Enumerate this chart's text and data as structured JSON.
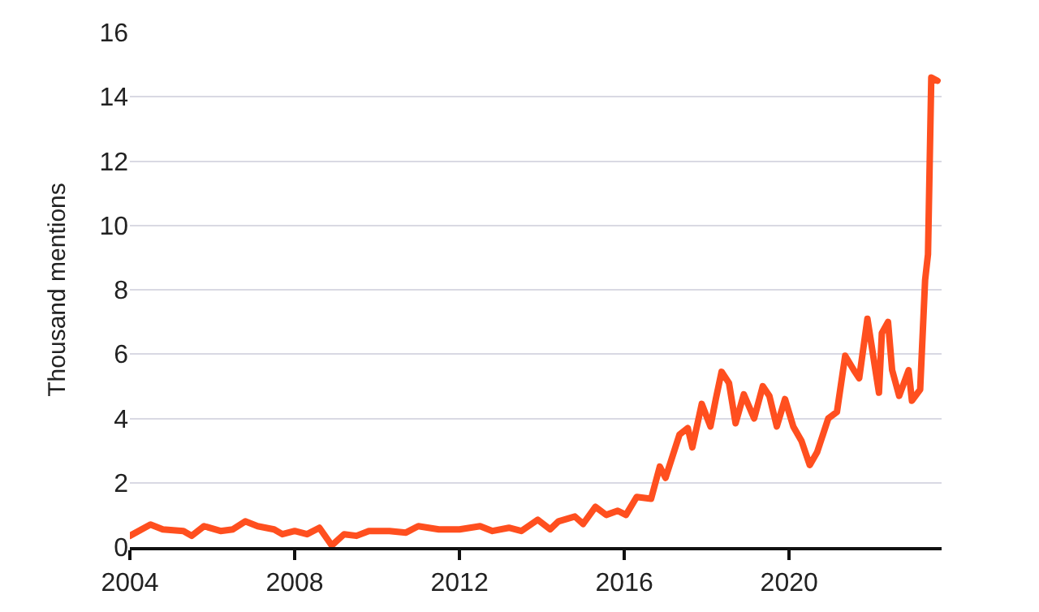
{
  "chart_data": {
    "type": "line",
    "ylabel": "Thousand mentions",
    "x": [
      2004.0,
      2004.5,
      2004.8,
      2005.3,
      2005.5,
      2005.8,
      2006.2,
      2006.5,
      2006.8,
      2007.1,
      2007.5,
      2007.7,
      2008.0,
      2008.3,
      2008.6,
      2008.9,
      2009.2,
      2009.5,
      2009.8,
      2010.3,
      2010.7,
      2011.0,
      2011.5,
      2012.0,
      2012.5,
      2012.8,
      2013.2,
      2013.5,
      2013.9,
      2014.2,
      2014.4,
      2014.8,
      2015.0,
      2015.3,
      2015.56,
      2015.84,
      2016.04,
      2016.3,
      2016.65,
      2016.86,
      2017.0,
      2017.34,
      2017.54,
      2017.65,
      2017.88,
      2018.09,
      2018.22,
      2018.36,
      2018.54,
      2018.7,
      2018.9,
      2019.15,
      2019.36,
      2019.52,
      2019.7,
      2019.9,
      2020.1,
      2020.3,
      2020.5,
      2020.68,
      2020.95,
      2021.16,
      2021.36,
      2021.57,
      2021.7,
      2021.9,
      2022.18,
      2022.25,
      2022.4,
      2022.5,
      2022.67,
      2022.9,
      2022.98,
      2023.18,
      2023.3,
      2023.37,
      2023.45,
      2023.6
    ],
    "series": [
      {
        "color": "#ff4f1f",
        "values": [
          0.35,
          0.7,
          0.55,
          0.5,
          0.35,
          0.65,
          0.5,
          0.55,
          0.8,
          0.65,
          0.55,
          0.4,
          0.5,
          0.4,
          0.6,
          0.05,
          0.4,
          0.35,
          0.5,
          0.5,
          0.45,
          0.65,
          0.55,
          0.55,
          0.65,
          0.5,
          0.6,
          0.5,
          0.85,
          0.55,
          0.8,
          0.95,
          0.72,
          1.25,
          1.0,
          1.13,
          1.0,
          1.56,
          1.5,
          2.5,
          2.15,
          3.5,
          3.7,
          3.1,
          4.45,
          3.75,
          4.6,
          5.45,
          5.1,
          3.85,
          4.75,
          4.0,
          5.0,
          4.7,
          3.75,
          4.6,
          3.75,
          3.3,
          2.55,
          2.95,
          4.0,
          4.2,
          5.95,
          5.5,
          5.25,
          7.1,
          4.8,
          6.65,
          7.0,
          5.5,
          4.7,
          5.5,
          4.55,
          4.9,
          8.3,
          9.1,
          14.6,
          14.5
        ]
      }
    ],
    "xlim": [
      2004,
      2023.7
    ],
    "xticks": [
      2004,
      2008,
      2012,
      2016,
      2020
    ],
    "ylim": [
      0,
      16
    ],
    "yticks": [
      0,
      2,
      4,
      6,
      8,
      10,
      12,
      14,
      16
    ],
    "grid": "y",
    "marker": "none",
    "line_style": "solid"
  }
}
